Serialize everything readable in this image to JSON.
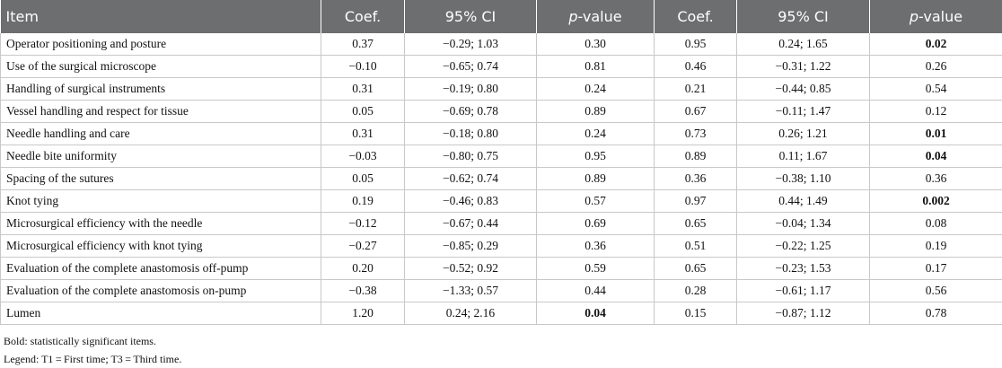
{
  "table": {
    "header": [
      "Item",
      "Coef.",
      "95% CI",
      "p-value",
      "Coef.",
      "95% CI",
      "p-value"
    ],
    "rows": [
      [
        "Operator positioning and posture",
        "0.37",
        "−0.29; 1.03",
        "0.30",
        "0.95",
        "0.24; 1.65",
        {
          "text": "0.02",
          "bold": true
        }
      ],
      [
        "Use of the surgical microscope",
        "−0.10",
        "−0.65; 0.74",
        "0.81",
        "0.46",
        "−0.31; 1.22",
        "0.26"
      ],
      [
        "Handling of surgical instruments",
        "0.31",
        "−0.19; 0.80",
        "0.24",
        "0.21",
        "−0.44; 0.85",
        "0.54"
      ],
      [
        "Vessel handling and respect for tissue",
        "0.05",
        "−0.69; 0.78",
        "0.89",
        "0.67",
        "−0.11; 1.47",
        "0.12"
      ],
      [
        "Needle handling and care",
        "0.31",
        "−0.18; 0.80",
        "0.24",
        "0.73",
        "0.26; 1.21",
        {
          "text": "0.01",
          "bold": true
        }
      ],
      [
        "Needle bite uniformity",
        "−0.03",
        "−0.80; 0.75",
        "0.95",
        "0.89",
        "0.11; 1.67",
        {
          "text": "0.04",
          "bold": true
        }
      ],
      [
        "Spacing of the sutures",
        "0.05",
        "−0.62; 0.74",
        "0.89",
        "0.36",
        "−0.38; 1.10",
        "0.36"
      ],
      [
        "Knot tying",
        "0.19",
        "−0.46; 0.83",
        "0.57",
        "0.97",
        "0.44; 1.49",
        {
          "text": "0.002",
          "bold": true
        }
      ],
      [
        "Microsurgical efficiency with the needle",
        "−0.12",
        "−0.67; 0.44",
        "0.69",
        "0.65",
        "−0.04; 1.34",
        "0.08"
      ],
      [
        "Microsurgical efficiency with knot tying",
        "−0.27",
        "−0.85; 0.29",
        "0.36",
        "0.51",
        "−0.22; 1.25",
        "0.19"
      ],
      [
        "Evaluation of the complete anastomosis off-pump",
        "0.20",
        "−0.52; 0.92",
        "0.59",
        "0.65",
        "−0.23; 1.53",
        "0.17"
      ],
      [
        "Evaluation of the complete anastomosis on-pump",
        "−0.38",
        "−1.33; 0.57",
        "0.44",
        "0.28",
        "−0.61; 1.17",
        "0.56"
      ],
      [
        "Lumen",
        "1.20",
        "0.24; 2.16",
        {
          "text": "0.04",
          "bold": true
        },
        "0.15",
        "−0.87; 1.12",
        "0.78"
      ]
    ]
  },
  "notes": [
    "Bold: statistically significant items.",
    "Legend: T1 = First time; T3 = Third time."
  ]
}
